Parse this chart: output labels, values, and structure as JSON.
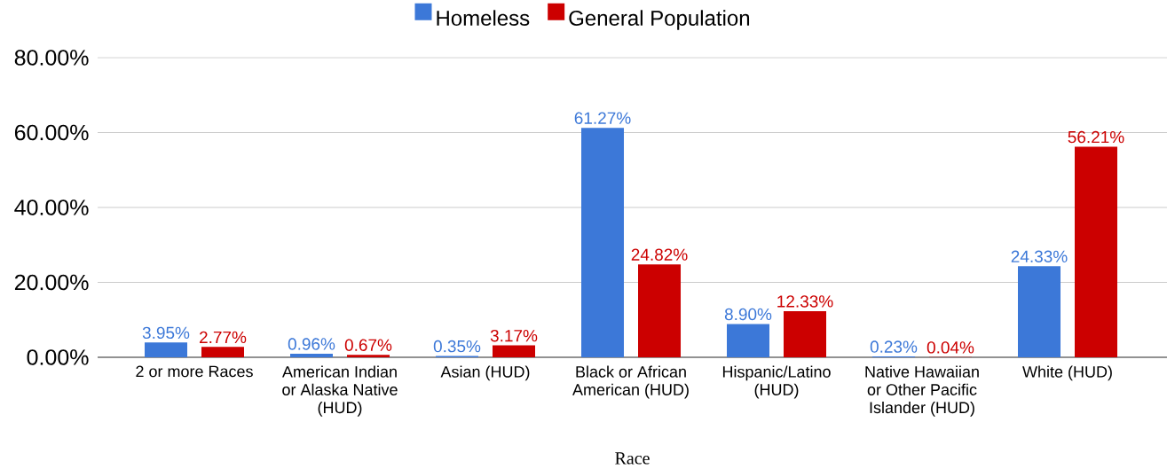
{
  "chart_data": {
    "type": "bar",
    "xlabel": "Race",
    "categories": [
      "2 or more Races",
      "American Indian or Alaska Native (HUD)",
      "Asian (HUD)",
      "Black or African American (HUD)",
      "Hispanic/Latino (HUD)",
      "Native Hawaiian or Other Pacific Islander (HUD)",
      "White (HUD)"
    ],
    "series": [
      {
        "name": "Homeless",
        "color": "#3c78d8",
        "values": [
          3.95,
          0.96,
          0.35,
          61.27,
          8.9,
          0.23,
          24.33
        ],
        "value_labels": [
          "3.95%",
          "0.96%",
          "0.35%",
          "61.27%",
          "8.90%",
          "0.23%",
          "24.33%"
        ]
      },
      {
        "name": "General Population",
        "color": "#cc0000",
        "values": [
          2.77,
          0.67,
          3.17,
          24.82,
          12.33,
          0.04,
          56.21
        ],
        "value_labels": [
          "2.77%",
          "0.67%",
          "3.17%",
          "24.82%",
          "12.33%",
          "0.04%",
          "56.21%"
        ]
      }
    ],
    "ylim": [
      0,
      80
    ],
    "yticks": [
      {
        "value": 0,
        "label": "0.00%"
      },
      {
        "value": 20,
        "label": "20.00%"
      },
      {
        "value": 40,
        "label": "40.00%"
      },
      {
        "value": 60,
        "label": "60.00%"
      },
      {
        "value": 80,
        "label": "80.00%"
      }
    ],
    "grid": "y",
    "legend": "top"
  }
}
